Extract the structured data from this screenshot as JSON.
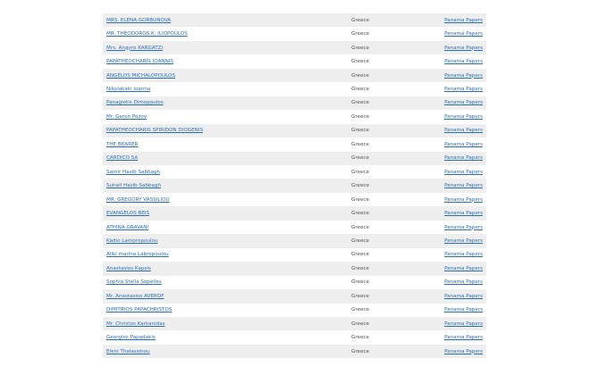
{
  "table": {
    "rows": [
      [
        "MRS. ELENA GORBUNOVA",
        "Greece",
        "Panama Papers"
      ],
      [
        "MR. THEODOROS K. ILIOPOULOS",
        "Greece",
        "Panama Papers"
      ],
      [
        "Mrs. Angyro KARGATZI",
        "Greece",
        "Panama Papers"
      ],
      [
        "PAPATHEOCHARIS IOANNIS",
        "Greece",
        "Panama Papers"
      ],
      [
        "ANGELOS MICHALOPOULOS",
        "Greece",
        "Panama Papers"
      ],
      [
        "Nikolakaki Ioanna",
        "Greece",
        "Panama Papers"
      ],
      [
        "Panagiotis Dimopoulos",
        "Greece",
        "Panama Papers"
      ],
      [
        "Mr. Geron Pozov",
        "Greece",
        "Panama Papers"
      ],
      [
        "PAPATHEOCHARIS SPIRIDON DIOGENIS",
        "Greece",
        "Panama Papers"
      ],
      [
        "THE BEARER",
        "Greece",
        "Panama Papers"
      ],
      [
        "CARDICO SA",
        "Greece",
        "Panama Papers"
      ],
      [
        "Samir Hasib Sabbagh",
        "Greece",
        "Panama Papers"
      ],
      [
        "Suhail Hasib Sabbagh",
        "Greece",
        "Panama Papers"
      ],
      [
        "MR. GREGORY VASSILIOU",
        "Greece",
        "Panama Papers"
      ],
      [
        "EVANGELOS BEIS",
        "Greece",
        "Panama Papers"
      ],
      [
        "ATHINA GRAVANI",
        "Greece",
        "Panama Papers"
      ],
      [
        "Kadio Lampropoulou",
        "Greece",
        "Panama Papers"
      ],
      [
        "Aliki marina Labropoulou",
        "Greece",
        "Panama Papers"
      ],
      [
        "Anastasios Kapsis",
        "Greece",
        "Panama Papers"
      ],
      [
        "Sophia Stella Sopeiles",
        "Greece",
        "Panama Papers"
      ],
      [
        "Mr. Anastasios AVEROF",
        "Greece",
        "Panama Papers"
      ],
      [
        "DIMITRIOS PAPACHRISTOS",
        "Greece",
        "Panama Papers"
      ],
      [
        "Mr. Christos Karkanidas",
        "Greece",
        "Panama Papers"
      ],
      [
        "Georgios Papadakis",
        "Greece",
        "Panama Papers"
      ],
      [
        "Eleni Thalassinou",
        "Greece",
        "Panama Papers"
      ]
    ]
  }
}
